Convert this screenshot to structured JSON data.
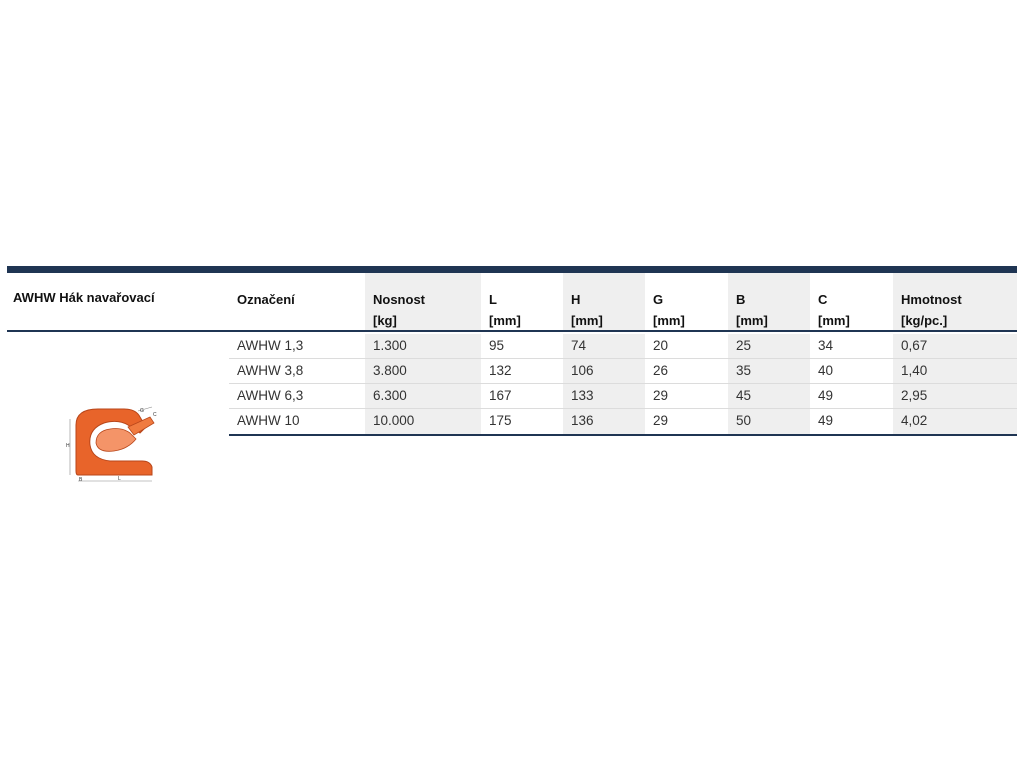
{
  "product": {
    "title": "AWHW Hák navařovací",
    "image_icon": "hook-diagram-icon",
    "dimension_labels": [
      "G",
      "C",
      "H",
      "B",
      "L"
    ]
  },
  "table": {
    "columns": [
      {
        "name": "Označení",
        "unit": ""
      },
      {
        "name": "Nosnost",
        "unit": "[kg]"
      },
      {
        "name": "L",
        "unit": "[mm]"
      },
      {
        "name": "H",
        "unit": "[mm]"
      },
      {
        "name": "G",
        "unit": "[mm]"
      },
      {
        "name": "B",
        "unit": "[mm]"
      },
      {
        "name": "C",
        "unit": "[mm]"
      },
      {
        "name": "Hmotnost",
        "unit": "[kg/pc.]"
      }
    ],
    "rows": [
      [
        "AWHW 1,3",
        "1.300",
        "95",
        "74",
        "20",
        "25",
        "34",
        "0,67"
      ],
      [
        "AWHW 3,8",
        "3.800",
        "132",
        "106",
        "26",
        "35",
        "40",
        "1,40"
      ],
      [
        "AWHW 6,3",
        "6.300",
        "167",
        "133",
        "29",
        "45",
        "49",
        "2,95"
      ],
      [
        "AWHW 10",
        "10.000",
        "175",
        "136",
        "29",
        "50",
        "49",
        "4,02"
      ]
    ]
  },
  "colors": {
    "accent": "#1f3553",
    "shade": "#efefef",
    "hook": "#e8642a"
  }
}
